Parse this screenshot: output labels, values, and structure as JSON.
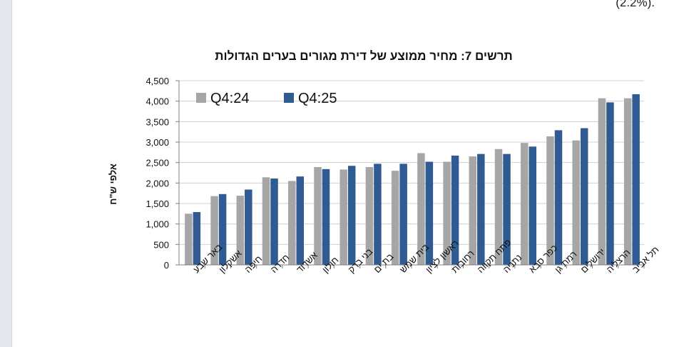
{
  "page": {
    "top_text": "(2.2%)."
  },
  "chart_data": {
    "type": "bar",
    "title": "תרשים 7: מחיר ממוצע של דירת מגורים בערים הגדולות",
    "ylabel": "אלפי ש\"ח",
    "xlabel": "",
    "ylim": [
      0,
      4500
    ],
    "yticks": [
      "0",
      "500",
      "1,000",
      "1,500",
      "2,000",
      "2,500",
      "3,000",
      "3,500",
      "4,000",
      "4,500"
    ],
    "ytick_values": [
      0,
      500,
      1000,
      1500,
      2000,
      2500,
      3000,
      3500,
      4000,
      4500
    ],
    "grid": true,
    "legend_position": "top-left",
    "categories": [
      "באר שבע",
      "אשקלון",
      "חיפה",
      "חדרה",
      "אשדוד",
      "חולון",
      "בני ברק",
      "בת ים",
      "בית שמש",
      "ראשון לציון",
      "רחובות",
      "פתח תקווה",
      "נתניה",
      "כפר סבא",
      "רמת גן",
      "ירושלים",
      "הרצליה",
      "תל אביב"
    ],
    "series": [
      {
        "name": "Q4:24",
        "color": "#a6a6a6",
        "values": [
          1250,
          1680,
          1690,
          2140,
          2050,
          2390,
          2330,
          2390,
          2300,
          2730,
          2520,
          2650,
          2830,
          2980,
          3140,
          3040,
          4070,
          4070
        ]
      },
      {
        "name": "Q4:25",
        "color": "#2f5b92",
        "values": [
          1290,
          1730,
          1840,
          2110,
          2160,
          2340,
          2420,
          2470,
          2470,
          2520,
          2670,
          2710,
          2710,
          2890,
          3290,
          3340,
          3970,
          4170
        ]
      }
    ]
  }
}
